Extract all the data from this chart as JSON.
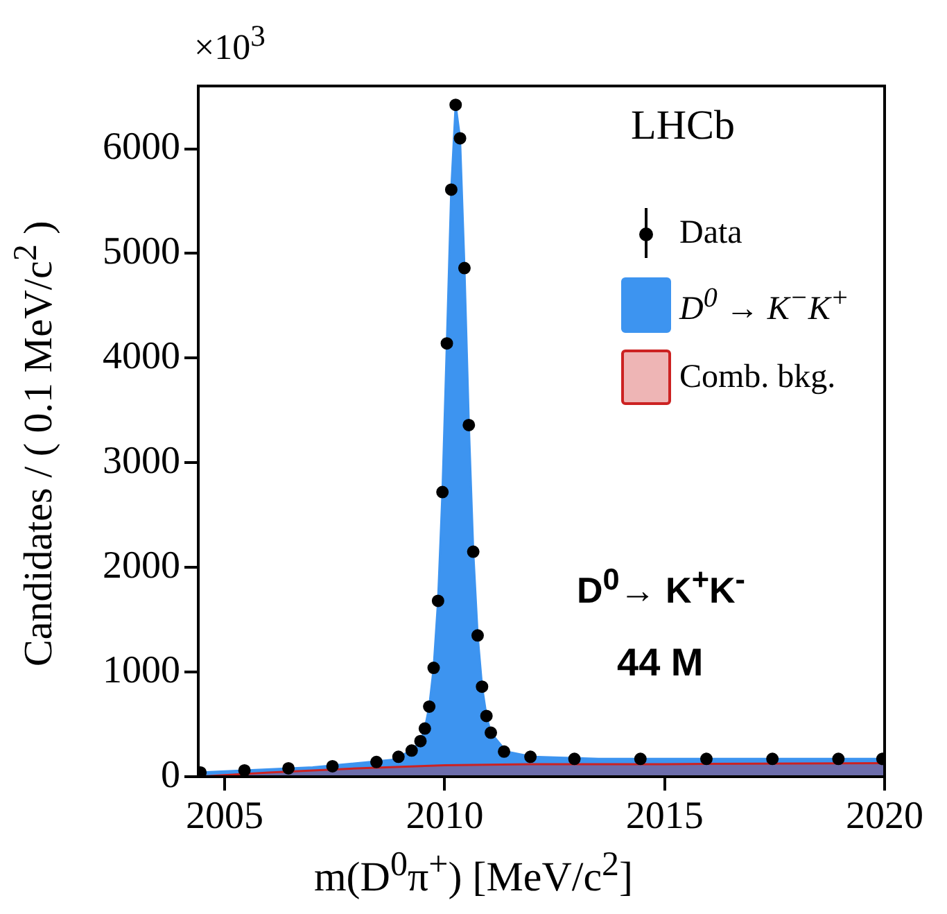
{
  "chart_data": {
    "type": "scatter",
    "xlabel": "m(D$^{0}$π$^{+}$) [MeV/c$^{2}$]",
    "ylabel": "Candidates / ( 0.1 MeV/c$^{2}$ )",
    "xlim": [
      2004.4,
      2020
    ],
    "xticks": [
      2005,
      2010,
      2015,
      2020
    ],
    "ylim": [
      0,
      6600
    ],
    "yticks": [
      0,
      1000,
      2000,
      3000,
      4000,
      5000,
      6000
    ],
    "grid": false,
    "legend": "top right",
    "series": [
      {
        "name": "D$^{0}$ → K$^{−}$K$^{+}$",
        "type": "area",
        "color": "#3d94f0",
        "x": [
          2004.4,
          2007,
          2008.8,
          2009.25,
          2009.45,
          2009.55,
          2009.65,
          2009.75,
          2009.85,
          2009.95,
          2010.05,
          2010.15,
          2010.25,
          2010.35,
          2010.45,
          2010.55,
          2010.65,
          2010.75,
          2010.85,
          2010.95,
          2011.05,
          2011.4,
          2012,
          2013.5,
          2020
        ],
        "values": [
          40,
          90,
          160,
          250,
          340,
          460,
          670,
          1040,
          1680,
          2720,
          4140,
          5610,
          6420,
          6100,
          4860,
          3360,
          2150,
          1350,
          860,
          580,
          420,
          240,
          190,
          170,
          170
        ]
      },
      {
        "name": "Comb. bkg.",
        "type": "area",
        "color": "#cc2222",
        "x": [
          2004.4,
          2006,
          2008,
          2010,
          2012,
          2015,
          2020
        ],
        "values": [
          0,
          40,
          80,
          110,
          120,
          120,
          130
        ]
      },
      {
        "name": "Data",
        "marker": "circle",
        "color": "#000000",
        "x": [
          2004.45,
          2005.45,
          2006.45,
          2007.45,
          2008.45,
          2008.95,
          2009.25,
          2009.45,
          2009.55,
          2009.65,
          2009.75,
          2009.85,
          2009.95,
          2010.05,
          2010.15,
          2010.25,
          2010.35,
          2010.45,
          2010.55,
          2010.65,
          2010.75,
          2010.85,
          2010.95,
          2011.05,
          2011.35,
          2011.95,
          2012.95,
          2014.45,
          2015.95,
          2017.45,
          2018.95,
          2019.95
        ],
        "values": [
          40,
          60,
          80,
          100,
          140,
          190,
          250,
          340,
          460,
          670,
          1040,
          1680,
          2720,
          4140,
          5610,
          6420,
          6100,
          4860,
          3360,
          2150,
          1350,
          860,
          580,
          420,
          240,
          190,
          170,
          170,
          170,
          170,
          170,
          170
        ]
      }
    ],
    "annotations": [
      "×10$^{3}$",
      "LHCb",
      "D$^{0}$→ K$^{+}$K$^{-}$",
      "44 M"
    ]
  }
}
